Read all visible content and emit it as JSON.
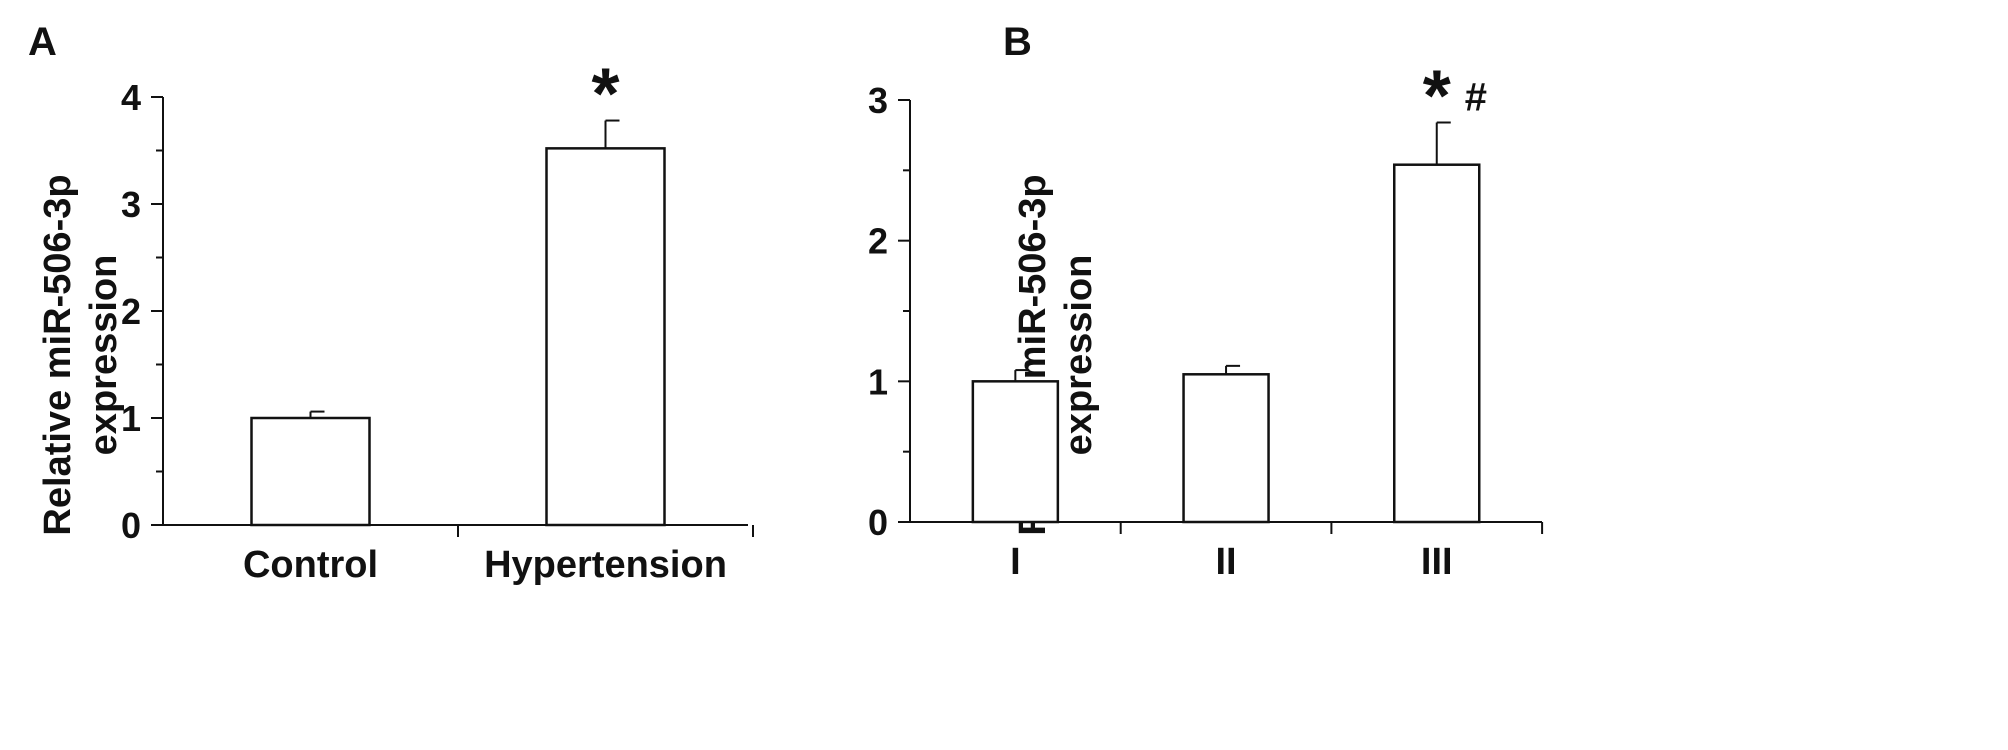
{
  "chart_data": [
    {
      "type": "bar",
      "panel": "A",
      "categories": [
        "Control",
        "Hypertension"
      ],
      "values": [
        1.0,
        3.52
      ],
      "errors": [
        0.06,
        0.26
      ],
      "annotations": [
        "",
        "*"
      ],
      "ylabel_line1": "Relative miR-506-3p",
      "ylabel_line2": "expression",
      "ylim": [
        0,
        4
      ],
      "yticks": [
        "0",
        "1",
        "2",
        "3",
        "4"
      ],
      "bar_color": "#ffffff",
      "edge_color": "#111111"
    },
    {
      "type": "bar",
      "panel": "B",
      "categories": [
        "I",
        "II",
        "III"
      ],
      "values": [
        1.0,
        1.05,
        2.54
      ],
      "errors": [
        0.08,
        0.06,
        0.3
      ],
      "annotations": [
        "",
        "",
        "*"
      ],
      "annotations_secondary": [
        "",
        "",
        "#"
      ],
      "ylabel_line1": "Relative miR-506-3p",
      "ylabel_line2": "expression",
      "ylim": [
        0,
        3
      ],
      "yticks": [
        "0",
        "1",
        "2",
        "3"
      ],
      "bar_color": "#ffffff",
      "edge_color": "#111111"
    }
  ]
}
